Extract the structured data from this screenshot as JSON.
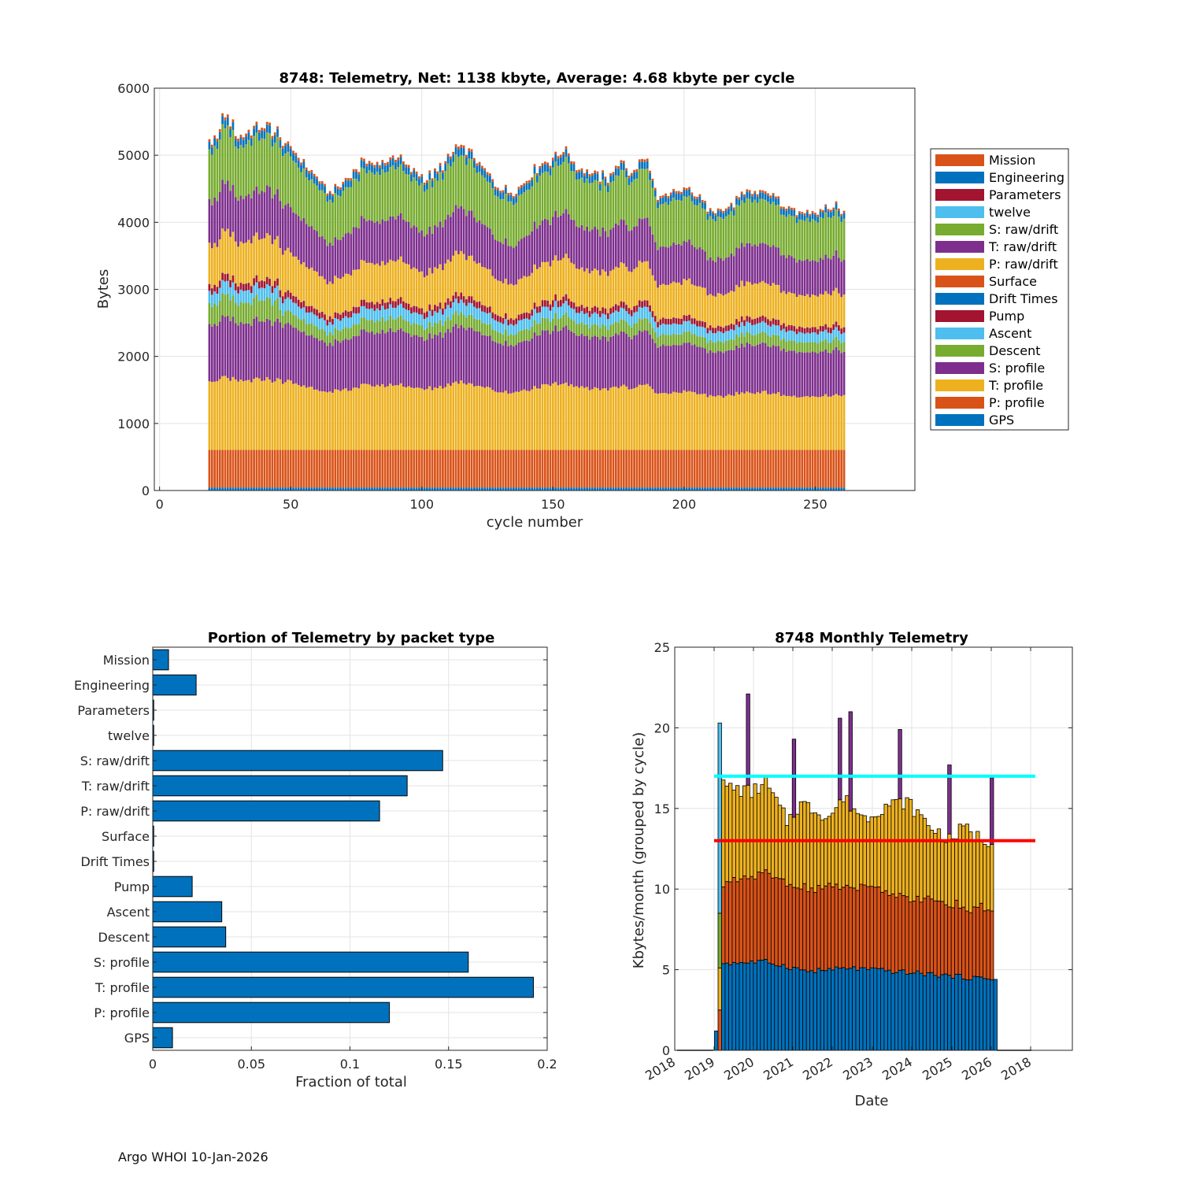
{
  "footer": "Argo WHOI 10-Jan-2026",
  "chart_data": [
    {
      "type": "bar",
      "stacked": true,
      "title": "8748: Telemetry, Net:   1138 kbyte,  Average: 4.68 kbyte per cycle",
      "xlabel": "cycle number",
      "ylabel": "Bytes",
      "xlim": [
        -2,
        288
      ],
      "ylim": [
        0,
        6000
      ],
      "xticks": [
        0,
        50,
        100,
        150,
        200,
        250
      ],
      "yticks": [
        0,
        1000,
        2000,
        3000,
        4000,
        5000,
        6000
      ],
      "grid": true,
      "legend_position": "right",
      "cycles": {
        "first": 19,
        "last": 261
      },
      "series_order_bottom_to_top": [
        "GPS",
        "P: profile",
        "T: profile",
        "S: profile",
        "Descent",
        "Ascent",
        "Pump",
        "Drift Times",
        "Surface",
        "P: raw/drift",
        "T: raw/drift",
        "S: raw/drift",
        "twelve",
        "Parameters",
        "Engineering",
        "Mission"
      ],
      "series_colors": {
        "GPS": "#0072bd",
        "P: profile": "#d95319",
        "T: profile": "#edb120",
        "S: profile": "#7e2f8e",
        "Descent": "#77ac30",
        "Ascent": "#4dbeee",
        "Pump": "#a2142f",
        "Drift Times": "#0072bd",
        "Surface": "#d95319",
        "P: raw/drift": "#edb120",
        "T: raw/drift": "#7e2f8e",
        "S: raw/drift": "#77ac30",
        "twelve": "#4dbeee",
        "Parameters": "#a2142f",
        "Engineering": "#0072bd",
        "Mission": "#d95319"
      },
      "typical_bytes_per_cycle": {
        "GPS": 45,
        "P: profile": 560,
        "T: profile": 900,
        "S: profile": 750,
        "Descent": 170,
        "Ascent": 160,
        "Pump": 90,
        "Drift Times": 2,
        "Surface": 2,
        "P: raw/drift": 540,
        "T: raw/drift": 600,
        "S: raw/drift": 680,
        "twelve": 2,
        "Parameters": 2,
        "Engineering": 100,
        "Mission": 36
      },
      "total_profile_points": [
        [
          19,
          5060
        ],
        [
          20,
          4980
        ],
        [
          25,
          5500
        ],
        [
          30,
          5160
        ],
        [
          35,
          5250
        ],
        [
          40,
          5330
        ],
        [
          45,
          5250
        ],
        [
          50,
          5100
        ],
        [
          55,
          4880
        ],
        [
          60,
          4700
        ],
        [
          65,
          4400
        ],
        [
          70,
          4600
        ],
        [
          75,
          4800
        ],
        [
          80,
          4950
        ],
        [
          85,
          4870
        ],
        [
          90,
          5000
        ],
        [
          95,
          4830
        ],
        [
          100,
          4670
        ],
        [
          105,
          4730
        ],
        [
          110,
          4920
        ],
        [
          113,
          5120
        ],
        [
          118,
          5080
        ],
        [
          125,
          4720
        ],
        [
          130,
          4500
        ],
        [
          135,
          4480
        ],
        [
          140,
          4640
        ],
        [
          145,
          4870
        ],
        [
          150,
          4940
        ],
        [
          155,
          5080
        ],
        [
          160,
          4780
        ],
        [
          165,
          4760
        ],
        [
          170,
          4620
        ],
        [
          175,
          4880
        ],
        [
          180,
          4740
        ],
        [
          185,
          5020
        ],
        [
          190,
          4360
        ],
        [
          195,
          4430
        ],
        [
          200,
          4490
        ],
        [
          205,
          4390
        ],
        [
          210,
          4220
        ],
        [
          215,
          4180
        ],
        [
          220,
          4330
        ],
        [
          225,
          4430
        ],
        [
          230,
          4470
        ],
        [
          235,
          4370
        ],
        [
          240,
          4170
        ],
        [
          245,
          4130
        ],
        [
          250,
          4160
        ],
        [
          255,
          4250
        ],
        [
          261,
          4180
        ]
      ]
    },
    {
      "type": "bar",
      "orientation": "horizontal",
      "title": "Portion of Telemetry by packet type",
      "xlabel": "Fraction of total",
      "ylabel": "",
      "xlim": [
        0,
        0.2
      ],
      "xticks": [
        0,
        0.05,
        0.1,
        0.15,
        0.2
      ],
      "xtick_labels": [
        "0",
        "0.05",
        "0.1",
        "0.15",
        "0.2"
      ],
      "grid": true,
      "categories": [
        "Mission",
        "Engineering",
        "Parameters",
        "twelve",
        "S: raw/drift",
        "T: raw/drift",
        "P: raw/drift",
        "Surface",
        "Drift Times",
        "Pump",
        "Ascent",
        "Descent",
        "S: profile",
        "T: profile",
        "P: profile",
        "GPS"
      ],
      "values": [
        0.008,
        0.022,
        0.0005,
        0.0005,
        0.147,
        0.129,
        0.115,
        0.0005,
        0.0005,
        0.02,
        0.035,
        0.037,
        0.16,
        0.193,
        0.12,
        0.01
      ],
      "color": "#0072bd"
    },
    {
      "type": "bar",
      "stacked": true,
      "title": "8748 Monthly Telemetry",
      "xlabel": "Date",
      "ylabel": "Kbytes/month (grouped by cycle)",
      "ylim": [
        0,
        25
      ],
      "yticks": [
        0,
        5,
        10,
        15,
        20,
        25
      ],
      "xtick_labels": [
        "2018",
        "2019",
        "2020",
        "2021",
        "2022",
        "2023",
        "2024",
        "2025",
        "2026",
        "2018"
      ],
      "grid": true,
      "segment_colors": [
        "#0072bd",
        "#d95319",
        "#edb120",
        "#7e2f8e",
        "#77ac30",
        "#4dbeee"
      ],
      "reference_lines": [
        {
          "value": 17,
          "color": "#00ffff"
        },
        {
          "value": 13,
          "color": "#ff0000"
        }
      ],
      "months": 79,
      "first_bar_totals": [
        1.2,
        20.3,
        16.6,
        16.3,
        15.4
      ],
      "spikes": [
        {
          "month_index": 7,
          "total": 22.1
        },
        {
          "month_index": 20,
          "total": 19.3
        },
        {
          "month_index": 33,
          "total": 20.6
        },
        {
          "month_index": 36,
          "total": 21.0
        },
        {
          "month_index": 50,
          "total": 19.9
        },
        {
          "month_index": 64,
          "total": 17.7
        },
        {
          "month_index": 76,
          "total": 16.9
        }
      ],
      "totals_trend": [
        [
          0,
          16.4
        ],
        [
          8,
          16.0
        ],
        [
          12,
          16.6
        ],
        [
          18,
          14.2
        ],
        [
          22,
          15.3
        ],
        [
          30,
          14.5
        ],
        [
          34,
          15.6
        ],
        [
          40,
          14.4
        ],
        [
          46,
          15.2
        ],
        [
          52,
          15.4
        ],
        [
          58,
          14.0
        ],
        [
          64,
          13.0
        ],
        [
          68,
          13.8
        ],
        [
          74,
          13.0
        ],
        [
          78,
          13.2
        ]
      ],
      "blue_trend": [
        [
          0,
          5.4
        ],
        [
          12,
          5.5
        ],
        [
          24,
          4.9
        ],
        [
          36,
          5.1
        ],
        [
          48,
          4.9
        ],
        [
          60,
          4.7
        ],
        [
          70,
          4.5
        ],
        [
          78,
          4.4
        ]
      ],
      "orange_trend": [
        [
          0,
          4.9
        ],
        [
          12,
          5.4
        ],
        [
          24,
          5.1
        ],
        [
          36,
          5.0
        ],
        [
          48,
          4.8
        ],
        [
          60,
          4.5
        ],
        [
          70,
          4.3
        ],
        [
          78,
          4.4
        ]
      ]
    }
  ]
}
